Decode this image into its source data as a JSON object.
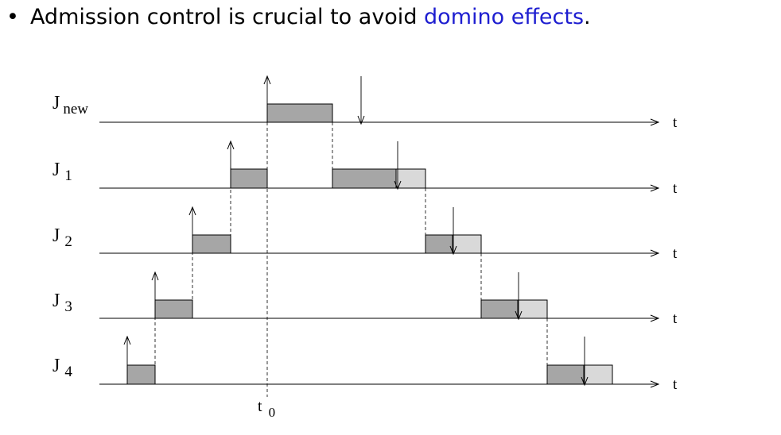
{
  "slide": {
    "bullet": "•",
    "text_before": "Admission control is crucial to avoid ",
    "text_highlight": "domino effects",
    "text_after": "."
  },
  "colors": {
    "highlight": "#1e1ed0",
    "executed": "#a6a6a6",
    "overrun": "#d9d9d9"
  },
  "diagram": {
    "axis_label": "t",
    "t0_main": "t",
    "t0_sub": "0",
    "jobs": [
      {
        "main": "J",
        "sub": "new"
      },
      {
        "main": "J",
        "sub": "1"
      },
      {
        "main": "J",
        "sub": "2"
      },
      {
        "main": "J",
        "sub": "3"
      },
      {
        "main": "J",
        "sub": "4"
      }
    ]
  }
}
